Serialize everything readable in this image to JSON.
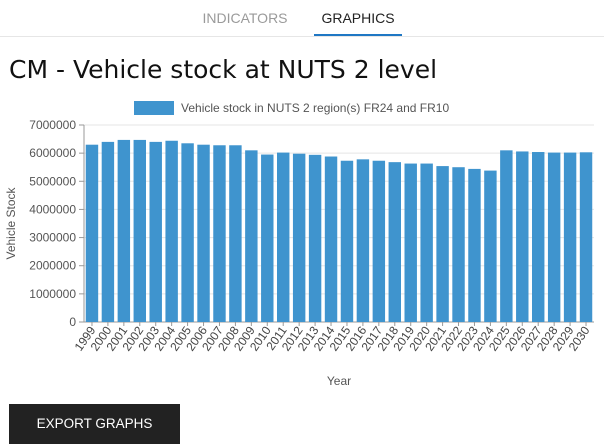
{
  "tabs": [
    {
      "label": "INDICATORS",
      "active": false
    },
    {
      "label": "GRAPHICS",
      "active": true
    }
  ],
  "page_title": "CM - Vehicle stock at NUTS 2 level",
  "export_button": "EXPORT GRAPHS",
  "colors": {
    "bar": "#3f94ce",
    "accent": "#1f77c4",
    "button_bg": "#222222"
  },
  "chart_data": {
    "type": "bar",
    "title": "",
    "xlabel": "Year",
    "ylabel": "Vehicle Stock",
    "ylim": [
      0,
      7000000
    ],
    "yticks": [
      0,
      1000000,
      2000000,
      3000000,
      4000000,
      5000000,
      6000000,
      7000000
    ],
    "legend_position": "top",
    "grid": true,
    "categories": [
      "1999",
      "2000",
      "2001",
      "2002",
      "2003",
      "2004",
      "2005",
      "2006",
      "2007",
      "2008",
      "2009",
      "2010",
      "2011",
      "2012",
      "2013",
      "2014",
      "2015",
      "2016",
      "2017",
      "2018",
      "2019",
      "2020",
      "2021",
      "2022",
      "2023",
      "2024",
      "2025",
      "2026",
      "2027",
      "2028",
      "2029",
      "2030"
    ],
    "series": [
      {
        "name": "Vehicle stock in NUTS 2 region(s) FR24 and FR10",
        "values": [
          6300000,
          6400000,
          6470000,
          6470000,
          6400000,
          6440000,
          6350000,
          6300000,
          6280000,
          6280000,
          6100000,
          5950000,
          6020000,
          5980000,
          5940000,
          5880000,
          5730000,
          5780000,
          5730000,
          5680000,
          5630000,
          5630000,
          5540000,
          5500000,
          5440000,
          5380000,
          6100000,
          6060000,
          6040000,
          6020000,
          6020000,
          6030000
        ]
      }
    ]
  }
}
